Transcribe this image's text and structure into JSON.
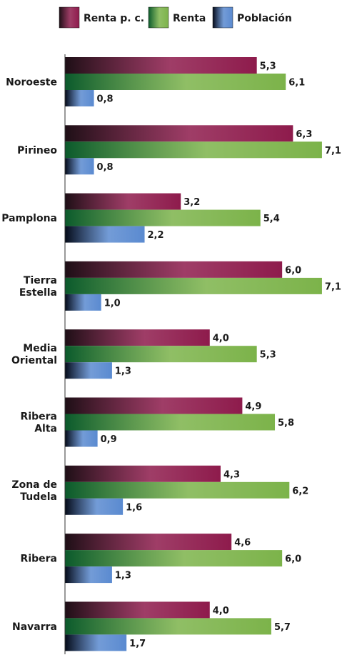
{
  "chart_data": {
    "type": "bar",
    "orientation": "horizontal",
    "categories": [
      [
        "Noroeste"
      ],
      [
        "Pirineo"
      ],
      [
        "Pamplona"
      ],
      [
        "Tierra",
        "Estella"
      ],
      [
        "Media",
        "Oriental"
      ],
      [
        "Ribera",
        "Alta"
      ],
      [
        "Zona de",
        "Tudela"
      ],
      [
        "Ribera"
      ],
      [
        "Navarra"
      ]
    ],
    "series": [
      {
        "name": "Renta p. c.",
        "values": [
          5.3,
          6.3,
          3.2,
          6.0,
          4.0,
          4.9,
          4.3,
          4.6,
          4.0
        ],
        "labels": [
          "5,3",
          "6,3",
          "3,2",
          "6,0",
          "4,0",
          "4,9",
          "4,3",
          "4,6",
          "4,0"
        ],
        "color_start": "#1e0f16",
        "color_end": "#8e1b4c"
      },
      {
        "name": "Renta",
        "values": [
          6.1,
          7.1,
          5.4,
          7.1,
          5.3,
          5.8,
          6.2,
          6.0,
          5.7
        ],
        "labels": [
          "6,1",
          "7,1",
          "5,4",
          "7,1",
          "5,3",
          "5,8",
          "6,2",
          "6,0",
          "5,7"
        ],
        "color_start": "#0b5a2c",
        "color_end": "#7cb34a"
      },
      {
        "name": "Población",
        "values": [
          0.8,
          0.8,
          2.2,
          1.0,
          1.3,
          0.9,
          1.6,
          1.3,
          1.7
        ],
        "labels": [
          "0,8",
          "0,8",
          "2,2",
          "1,0",
          "1,3",
          "0,9",
          "1,6",
          "1,3",
          "1,7"
        ],
        "color_start": "#040a18",
        "color_end": "#5a8ad0"
      }
    ],
    "xlim": [
      0,
      7.2
    ],
    "legend_position": "top",
    "grid": false
  }
}
